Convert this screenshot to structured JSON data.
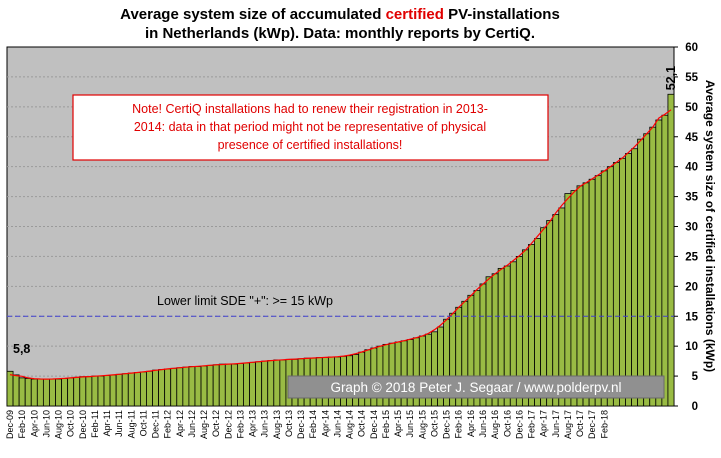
{
  "chart_data": {
    "type": "bar",
    "title_parts": [
      "Average system size of accumulated ",
      "certified",
      " PV-installations"
    ],
    "title_line2": "in Netherlands (kWp). Data: monthly reports by CertiQ.",
    "ylabel": "Average system size of certified installations (kWp)",
    "ylim": [
      0,
      60
    ],
    "yticks": [
      0,
      5,
      10,
      15,
      20,
      25,
      30,
      35,
      40,
      45,
      50,
      55,
      60
    ],
    "y_axis_position": "right",
    "grid": true,
    "x_start": "Dec-09",
    "x_end": "Feb-18",
    "xtick_labels": [
      "Dec-09",
      "Feb-10",
      "Apr-10",
      "Jun-10",
      "Aug-10",
      "Oct-10",
      "Dec-10",
      "Feb-11",
      "Apr-11",
      "Jun-11",
      "Aug-11",
      "Oct-11",
      "Dec-11",
      "Feb-12",
      "Apr-12",
      "Jun-12",
      "Aug-12",
      "Oct-12",
      "Dec-12",
      "Feb-13",
      "Apr-13",
      "Jun-13",
      "Aug-13",
      "Oct-13",
      "Dec-13",
      "Feb-14",
      "Apr-14",
      "Jun-14",
      "Aug-14",
      "Oct-14",
      "Dec-14",
      "Feb-15",
      "Apr-15",
      "Jun-15",
      "Aug-15",
      "Oct-15",
      "Dec-15",
      "Feb-16",
      "Apr-16",
      "Jun-16",
      "Aug-16",
      "Oct-16",
      "Dec-16",
      "Feb-17",
      "Apr-17",
      "Jun-17",
      "Aug-17",
      "Oct-17",
      "Dec-17",
      "Feb-18"
    ],
    "values": [
      5.8,
      5.2,
      4.7,
      4.6,
      4.5,
      4.5,
      4.5,
      4.5,
      4.5,
      4.6,
      4.7,
      4.8,
      4.9,
      4.9,
      5.0,
      5.0,
      5.1,
      5.2,
      5.3,
      5.4,
      5.5,
      5.6,
      5.7,
      5.8,
      6.0,
      6.1,
      6.2,
      6.3,
      6.4,
      6.5,
      6.6,
      6.6,
      6.7,
      6.8,
      6.9,
      7.0,
      7.0,
      7.0,
      7.1,
      7.2,
      7.3,
      7.4,
      7.5,
      7.6,
      7.7,
      7.7,
      7.8,
      7.8,
      7.9,
      8.0,
      8.0,
      8.1,
      8.1,
      8.2,
      8.2,
      8.3,
      8.4,
      8.6,
      9.0,
      9.4,
      9.7,
      10.0,
      10.3,
      10.5,
      10.7,
      10.9,
      11.1,
      11.4,
      11.7,
      12.0,
      12.4,
      13.2,
      14.5,
      15.5,
      16.5,
      17.5,
      18.5,
      19.3,
      20.4,
      21.6,
      22.1,
      23.0,
      23.4,
      24.1,
      25.0,
      26.1,
      27.0,
      28.0,
      29.8,
      31.0,
      32.0,
      33.1,
      35.5,
      36.0,
      36.8,
      37.3,
      37.9,
      38.5,
      39.3,
      40.0,
      40.7,
      41.4,
      42.2,
      43.0,
      44.6,
      45.5,
      46.6,
      47.8,
      48.6,
      52.1
    ],
    "series": [
      {
        "type": "bar",
        "color": "#99bb44"
      },
      {
        "type": "line",
        "style": "trend",
        "color": "#ff0000"
      }
    ],
    "reference_line": {
      "value": 15,
      "label": "Lower limit  SDE \"+\":   >= 15 kWp",
      "color": "#4040d0"
    },
    "start_label": "5,8",
    "end_label": "52,1"
  },
  "annotations": {
    "note_lines": [
      "Note! CertiQ installations had to renew their registration in 2013-",
      "2014:  data in  that period  might  not be representative of physical",
      "presence of certified installations!"
    ],
    "credit": "Graph © 2018 Peter J. Segaar / www.polderpv.nl"
  },
  "colors": {
    "plot_bg": "#c0c0c0",
    "bar_fill": "#99bb44",
    "bar_stroke": "#000000",
    "trend": "#ff0000",
    "limit_line": "#4040d0",
    "note_text": "#e00000",
    "credit_bg": "#909090"
  }
}
